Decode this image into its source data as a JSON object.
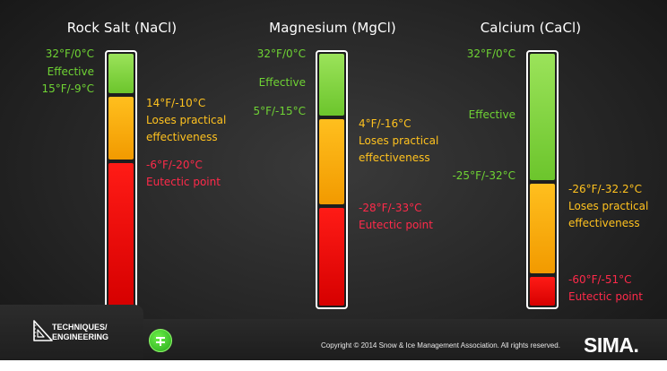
{
  "columns": [
    {
      "title": "Rock Salt (NaCl)",
      "labels": {
        "top_temp": "32°F/0°C",
        "effective": "Effective",
        "effective_limit": "15°F/-9°C",
        "loses_temp": "14°F/-10°C",
        "loses_line1": "Loses practical",
        "loses_line2": "effectiveness",
        "eutectic_temp": "-6°F/-20°C",
        "eutectic_label": "Eutectic point"
      },
      "segments": {
        "effective_pct": 17,
        "loses_pct": 26,
        "eutectic_pct": 57
      }
    },
    {
      "title": "Magnesium (MgCl)",
      "labels": {
        "top_temp": "32°F/0°C",
        "effective": "Effective",
        "effective_limit": "5°F/-15°C",
        "loses_temp": "4°F/-16°C",
        "loses_line1": "Loses practical",
        "loses_line2": "effectiveness",
        "eutectic_temp": "-28°F/-33°C",
        "eutectic_label": "Eutectic point"
      },
      "segments": {
        "effective_pct": 26,
        "loses_pct": 36,
        "eutectic_pct": 38
      }
    },
    {
      "title": "Calcium (CaCl)",
      "labels": {
        "top_temp": "32°F/0°C",
        "effective": "Effective",
        "effective_limit": "-25°F/-32°C",
        "loses_temp": "-26°F/-32.2°C",
        "loses_line1": "Loses practical",
        "loses_line2": "effectiveness",
        "eutectic_temp": "-60°F/-51°C",
        "eutectic_label": "Eutectic point"
      },
      "segments": {
        "effective_pct": 51,
        "loses_pct": 37,
        "eutectic_pct": 12
      }
    }
  ],
  "colors": {
    "effective": "#7ed63a",
    "loses": "#f7aa0a",
    "eutectic": "#e8000a"
  },
  "footer": {
    "brand_line1": "TECHNIQUES/",
    "brand_line2": "ENGINEERING",
    "brand_icon": "triangle-ruler-icon",
    "button_icon": "green-circle-icon",
    "copyright": "Copyright © 2014 Snow & Ice Management Association. All rights reserved.",
    "logo": "SIMA."
  }
}
